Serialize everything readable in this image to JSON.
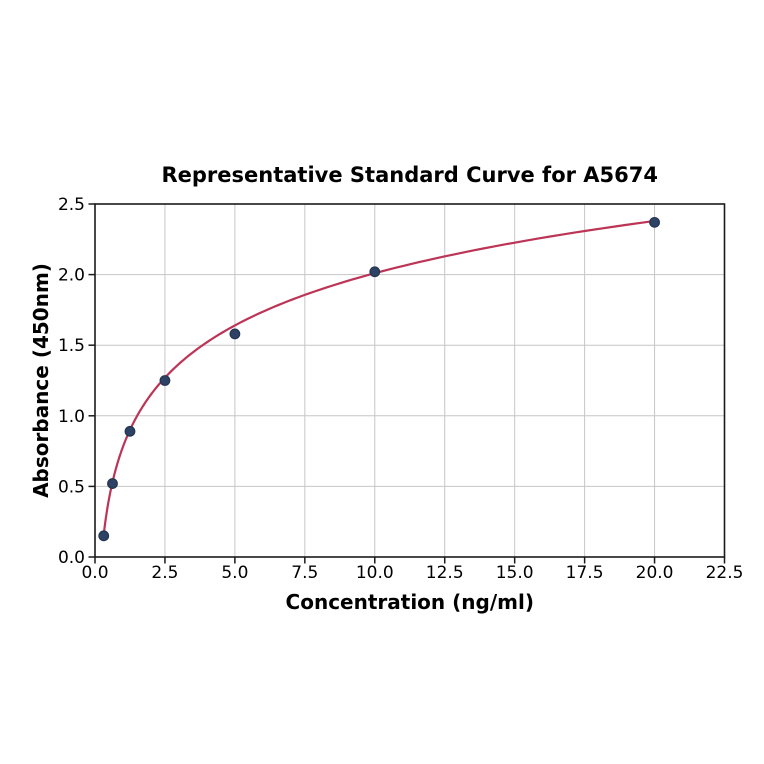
{
  "figure": {
    "background": "#ffffff"
  },
  "chart_data": {
    "type": "scatter",
    "title": "Representative Standard Curve for A5674",
    "xlabel": "Concentration (ng/ml)",
    "ylabel": "Absorbance (450nm)",
    "series": [
      {
        "name": "standard-points",
        "x": [
          0.3125,
          0.625,
          1.25,
          2.5,
          5,
          10,
          20
        ],
        "y": [
          0.15,
          0.52,
          0.89,
          1.25,
          1.58,
          2.02,
          2.37
        ]
      }
    ],
    "fit_curve": {
      "type": "logarithmic",
      "slope": 0.5337,
      "intercept": 0.781,
      "x_start": 0.3125,
      "x_end": 20
    },
    "xlim": [
      0,
      22.5
    ],
    "ylim": [
      0,
      2.5
    ],
    "xticks": [
      0,
      2.5,
      5,
      7.5,
      10,
      12.5,
      15,
      17.5,
      20,
      22.5
    ],
    "yticks": [
      0,
      0.5,
      1,
      1.5,
      2,
      2.5
    ],
    "tick_decimals": 1,
    "grid": true,
    "legend_position": "none",
    "colors": {
      "curve": "#bc3456",
      "marker_fill": "#2e4265",
      "marker_edge": "#233550",
      "grid": "#c6c6c6",
      "axis": "#1a1a1a",
      "text": "#000000",
      "background": "#ffffff"
    }
  }
}
